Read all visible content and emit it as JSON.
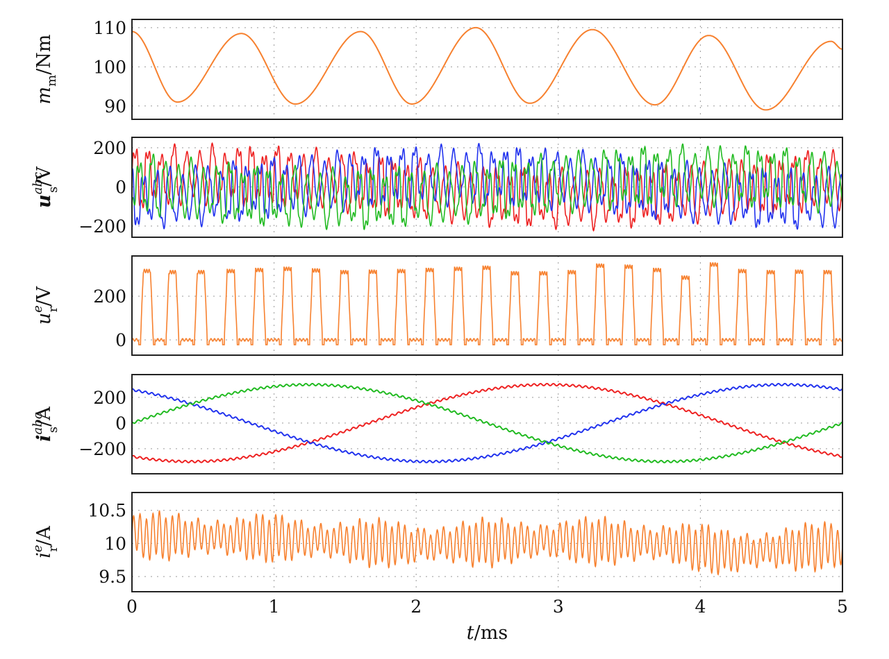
{
  "chart_data": [
    {
      "type": "line",
      "ylabel": {
        "main": "m",
        "sub": "m",
        "unit": "/Nm"
      },
      "ylim": [
        86.6,
        112.1
      ],
      "yticks": [
        90,
        100,
        110
      ],
      "xlim": [
        0,
        5
      ],
      "series": [
        {
          "name": "m_m",
          "color": "#f7812f",
          "keypoints_t": [
            0,
            0.32,
            0.77,
            1.15,
            1.61,
            1.97,
            2.42,
            2.8,
            3.24,
            3.68,
            4.06,
            4.46,
            4.92,
            5.0
          ],
          "keypoints_y": [
            109,
            91,
            108.5,
            90.5,
            109,
            90.5,
            110,
            90.7,
            109.5,
            90.3,
            108,
            89,
            106.5,
            104.5
          ]
        }
      ]
    },
    {
      "type": "line",
      "ylabel": {
        "main": "u",
        "sup": "abc",
        "sub": "s",
        "unit": "/V"
      },
      "ylim": [
        -257,
        253
      ],
      "yticks": [
        -200,
        0,
        200
      ],
      "xlim": [
        0,
        5
      ],
      "series": [
        {
          "name": "u_s^a",
          "color": "#ee2222",
          "offset_amp": 60,
          "offset_peak_t": 0.6,
          "switch_amp": 140,
          "switch_freq_per_ms": 11,
          "phase": 0
        },
        {
          "name": "u_s^b",
          "color": "#2233ee",
          "offset_amp": 60,
          "offset_peak_t": 2.3,
          "switch_amp": 140,
          "switch_freq_per_ms": 11,
          "phase": 2.1
        },
        {
          "name": "u_s^c",
          "color": "#22bb22",
          "offset_amp": 60,
          "offset_peak_t": 4.0,
          "switch_amp": 140,
          "switch_freq_per_ms": 11,
          "phase": 4.2
        }
      ]
    },
    {
      "type": "line",
      "ylabel": {
        "main": "u",
        "sup": "e",
        "sub": "r",
        "unit": "/V"
      },
      "ylim": [
        -70,
        384
      ],
      "yticks": [
        0,
        200
      ],
      "xlim": [
        0,
        5
      ],
      "series": [
        {
          "name": "u_r^e",
          "color": "#f7812f",
          "pulse_width_ms": 0.07,
          "pulse_t": [
            0.07,
            0.25,
            0.45,
            0.66,
            0.86,
            1.06,
            1.26,
            1.46,
            1.66,
            1.86,
            2.06,
            2.26,
            2.46,
            2.66,
            2.86,
            3.06,
            3.26,
            3.46,
            3.66,
            3.86,
            4.06,
            4.26,
            4.46,
            4.66,
            4.86
          ],
          "pulse_v": [
            315,
            310,
            310,
            315,
            320,
            325,
            318,
            310,
            312,
            315,
            320,
            325,
            330,
            305,
            305,
            310,
            340,
            335,
            320,
            285,
            345,
            315,
            310,
            312,
            310
          ]
        }
      ]
    },
    {
      "type": "line",
      "ylabel": {
        "main": "i",
        "sup": "abc",
        "sub": "s",
        "unit": "/A"
      },
      "ylim": [
        -395,
        378
      ],
      "yticks": [
        -200,
        0,
        200
      ],
      "xlim": [
        0,
        5
      ],
      "series": [
        {
          "name": "i_s^a",
          "color": "#ee2222",
          "amplitude": 300,
          "period_ms": 5,
          "phase_deg": -120,
          "ripple": 8
        },
        {
          "name": "i_s^b",
          "color": "#2233ee",
          "amplitude": 300,
          "period_ms": 5,
          "phase_deg": 120,
          "ripple": 8
        },
        {
          "name": "i_s^c",
          "color": "#22bb22",
          "amplitude": 300,
          "period_ms": 5,
          "phase_deg": 0,
          "ripple": 8
        }
      ]
    },
    {
      "type": "line",
      "ylabel": {
        "main": "i",
        "sup": "e",
        "sub": "r",
        "unit": "/A"
      },
      "ylim": [
        9.27,
        10.77
      ],
      "yticks": [
        9.5,
        10,
        10.5
      ],
      "ytick_labels": [
        "9.5",
        "10",
        "10.5"
      ],
      "xlim": [
        0,
        5
      ],
      "xticks": [
        0,
        1,
        2,
        3,
        4,
        5
      ],
      "xlabel": {
        "main": "t",
        "unit": "/ms"
      },
      "series": [
        {
          "name": "i_r^e",
          "color": "#f7812f",
          "ripple_amp": 0.33,
          "ripple_freq_per_ms": 22,
          "mean_t": [
            0,
            1,
            2,
            3,
            3.8,
            4.2,
            5
          ],
          "mean_y": [
            10.12,
            10.08,
            9.98,
            10.05,
            10.0,
            9.86,
            9.98
          ]
        }
      ]
    }
  ]
}
